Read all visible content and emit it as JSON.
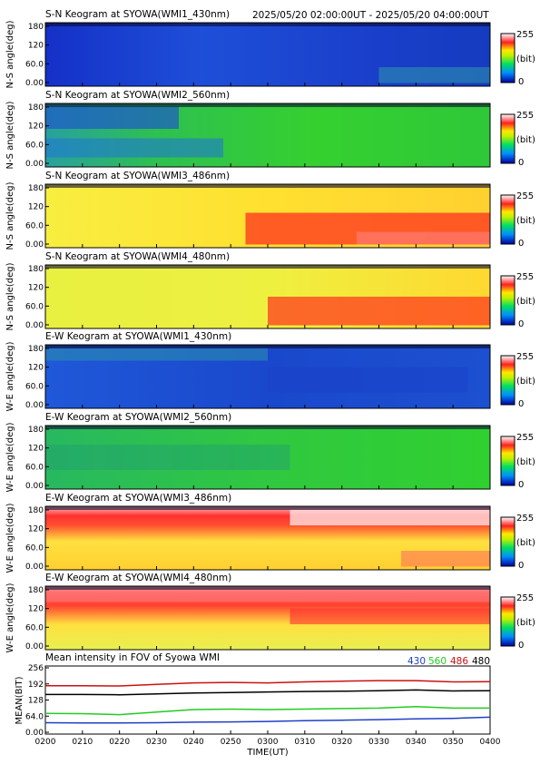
{
  "header": {
    "time_range": "2025/05/20 02:00:00UT - 2025/05/20 04:00:00UT"
  },
  "colorbar": {
    "max_label": "255",
    "unit_label": "(bit)",
    "min_label": "0"
  },
  "y_ticks": [
    "180",
    "120",
    "60.0",
    "0.00"
  ],
  "panels": [
    {
      "title": "S-N Keogram at SYOWA(WMI1_430nm)",
      "ylabel": "N-S angle(deg)"
    },
    {
      "title": "S-N Keogram at SYOWA(WMI2_560nm)",
      "ylabel": "N-S angle(deg)"
    },
    {
      "title": "S-N Keogram at SYOWA(WMI3_486nm)",
      "ylabel": "N-S angle(deg)"
    },
    {
      "title": "S-N Keogram at SYOWA(WMI4_480nm)",
      "ylabel": "N-S angle(deg)"
    },
    {
      "title": "E-W Keogram at SYOWA(WMI1_430nm)",
      "ylabel": "W-E angle(deg)"
    },
    {
      "title": "E-W Keogram at SYOWA(WMI2_560nm)",
      "ylabel": "W-E angle(deg)"
    },
    {
      "title": "E-W Keogram at SYOWA(WMI3_486nm)",
      "ylabel": "W-E angle(deg)"
    },
    {
      "title": "E-W Keogram at SYOWA(WMI4_480nm)",
      "ylabel": "W-E angle(deg)"
    }
  ],
  "colors": {
    "s430": "#1f3fc8",
    "s560": "#22cc22",
    "s486": "#cc1111",
    "s480": "#000000"
  },
  "chart_data": {
    "type": "line",
    "title": "Mean intensity in FOV of Syowa WMI",
    "xlabel": "TIME(UT)",
    "ylabel": "MEAN(BIT)",
    "ylim": [
      0,
      256
    ],
    "y_ticks": [
      "256",
      "192",
      "128",
      "64.0",
      "0.00"
    ],
    "x_ticks": [
      "0200",
      "0210",
      "0220",
      "0230",
      "0240",
      "0250",
      "0300",
      "0310",
      "0320",
      "0330",
      "0340",
      "0350",
      "0400"
    ],
    "x": [
      0,
      10,
      20,
      30,
      40,
      50,
      60,
      70,
      80,
      90,
      100,
      110,
      120
    ],
    "legend": [
      "430",
      "560",
      "486",
      "480"
    ],
    "series": [
      {
        "name": "486",
        "values": [
          185,
          185,
          184,
          190,
          196,
          198,
          196,
          200,
          203,
          205,
          205,
          200,
          201
        ]
      },
      {
        "name": "480",
        "values": [
          150,
          150,
          149,
          152,
          156,
          158,
          160,
          162,
          163,
          165,
          168,
          164,
          165
        ]
      },
      {
        "name": "560",
        "values": [
          75,
          74,
          70,
          80,
          90,
          92,
          90,
          92,
          94,
          96,
          102,
          96,
          96
        ]
      },
      {
        "name": "430",
        "values": [
          38,
          37,
          37,
          38,
          40,
          41,
          43,
          46,
          48,
          50,
          53,
          55,
          60
        ]
      }
    ]
  }
}
